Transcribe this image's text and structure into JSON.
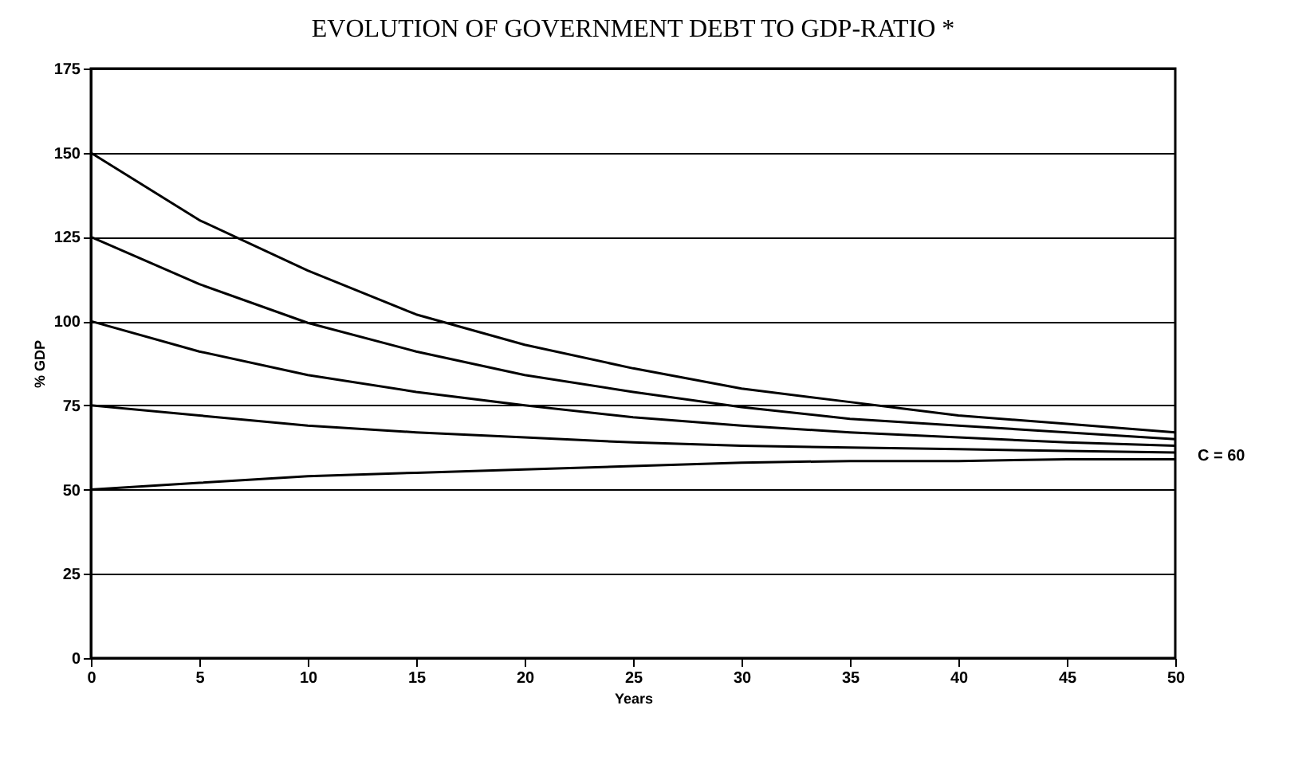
{
  "chart_data": {
    "type": "line",
    "title": "EVOLUTION OF GOVERNMENT DEBT TO GDP-RATIO *",
    "xlabel": "Years",
    "ylabel": "% GDP",
    "x": [
      0,
      5,
      10,
      15,
      20,
      25,
      30,
      35,
      40,
      45,
      50
    ],
    "series": [
      {
        "color": "#000000",
        "values": [
          150,
          130,
          115,
          102,
          93,
          86,
          80,
          76,
          72,
          69.5,
          67
        ]
      },
      {
        "color": "#000000",
        "values": [
          125,
          111,
          99.5,
          91,
          84,
          79,
          74.5,
          71,
          69,
          67,
          65
        ]
      },
      {
        "color": "#000000",
        "values": [
          100,
          91,
          84,
          79,
          75,
          71.5,
          69,
          67,
          65.5,
          64,
          63
        ]
      },
      {
        "color": "#000000",
        "values": [
          75,
          72,
          69,
          67,
          65.5,
          64,
          63,
          62.5,
          62,
          61.5,
          61
        ]
      },
      {
        "color": "#000000",
        "values": [
          50,
          52,
          54,
          55,
          56,
          57,
          58,
          58.5,
          58.5,
          59,
          59
        ]
      }
    ],
    "annotations": [
      {
        "text": "C = 60",
        "x": 50,
        "y": 60
      }
    ],
    "xlim": [
      0,
      50
    ],
    "xticks": [
      0,
      5,
      10,
      15,
      20,
      25,
      30,
      35,
      40,
      45,
      50
    ],
    "ylim": [
      0,
      175
    ],
    "yticks": [
      0,
      25,
      50,
      75,
      100,
      125,
      150,
      175
    ],
    "grid": "y",
    "legend": false,
    "marker": "none",
    "line_style": "solid"
  }
}
